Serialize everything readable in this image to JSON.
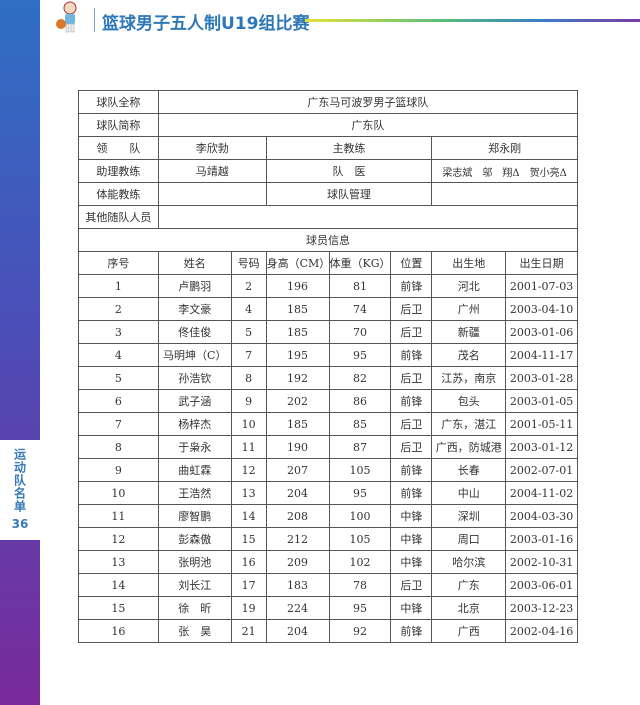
{
  "header": {
    "title": "篮球男子五人制U19组比赛",
    "mascot_icon": "basketball-mascot-icon"
  },
  "sidebar": {
    "section": "运动队名单",
    "page": "36"
  },
  "team": {
    "full_name_label": "球队全称",
    "full_name": "广东马可波罗男子篮球队",
    "short_name_label": "球队简称",
    "short_name": "广东队",
    "leader_label": "领　　队",
    "leader": "李欣勃",
    "head_coach_label": "主教练",
    "head_coach": "郑永刚",
    "assistant_label": "助理教练",
    "assistant": "马靖越",
    "doctor_label": "队　医",
    "doctor": "梁志斌　邬　翔Δ　贺小亮Δ",
    "fitness_label": "体能教练",
    "fitness": "",
    "manager_label": "球队管理",
    "manager": "",
    "others_label": "其他随队人员",
    "others": "",
    "players_title": "球员信息"
  },
  "columns": [
    "序号",
    "姓名",
    "号码",
    "身高（CM）",
    "体重（KG）",
    "位置",
    "出生地",
    "出生日期"
  ],
  "players": [
    [
      "1",
      "卢鹏羽",
      "2",
      "196",
      "81",
      "前锋",
      "河北",
      "2001-07-03"
    ],
    [
      "2",
      "李文豪",
      "4",
      "185",
      "74",
      "后卫",
      "广州",
      "2003-04-10"
    ],
    [
      "3",
      "佟佳俊",
      "5",
      "185",
      "70",
      "后卫",
      "新疆",
      "2003-01-06"
    ],
    [
      "4",
      "马明坤（C）",
      "7",
      "195",
      "95",
      "前锋",
      "茂名",
      "2004-11-17"
    ],
    [
      "5",
      "孙浩钦",
      "8",
      "192",
      "82",
      "后卫",
      "江苏，南京",
      "2003-01-28"
    ],
    [
      "6",
      "武子涵",
      "9",
      "202",
      "86",
      "前锋",
      "包头",
      "2003-01-05"
    ],
    [
      "7",
      "杨梓杰",
      "10",
      "185",
      "85",
      "后卫",
      "广东，湛江",
      "2001-05-11"
    ],
    [
      "8",
      "于枭永",
      "11",
      "190",
      "87",
      "后卫",
      "广西，防城港",
      "2003-01-12"
    ],
    [
      "9",
      "曲虹霖",
      "12",
      "207",
      "105",
      "前锋",
      "长春",
      "2002-07-01"
    ],
    [
      "10",
      "王浩然",
      "13",
      "204",
      "95",
      "前锋",
      "中山",
      "2004-11-02"
    ],
    [
      "11",
      "廖智鹏",
      "14",
      "208",
      "100",
      "中锋",
      "深圳",
      "2004-03-30"
    ],
    [
      "12",
      "彭森傲",
      "15",
      "212",
      "105",
      "中锋",
      "周口",
      "2003-01-16"
    ],
    [
      "13",
      "张明池",
      "16",
      "209",
      "102",
      "中锋",
      "哈尔滨",
      "2002-10-31"
    ],
    [
      "14",
      "刘长江",
      "17",
      "183",
      "78",
      "后卫",
      "广东",
      "2003-06-01"
    ],
    [
      "15",
      "徐　昕",
      "19",
      "224",
      "95",
      "中锋",
      "北京",
      "2003-12-23"
    ],
    [
      "16",
      "张　昊",
      "21",
      "204",
      "92",
      "前锋",
      "广西",
      "2002-04-16"
    ]
  ]
}
